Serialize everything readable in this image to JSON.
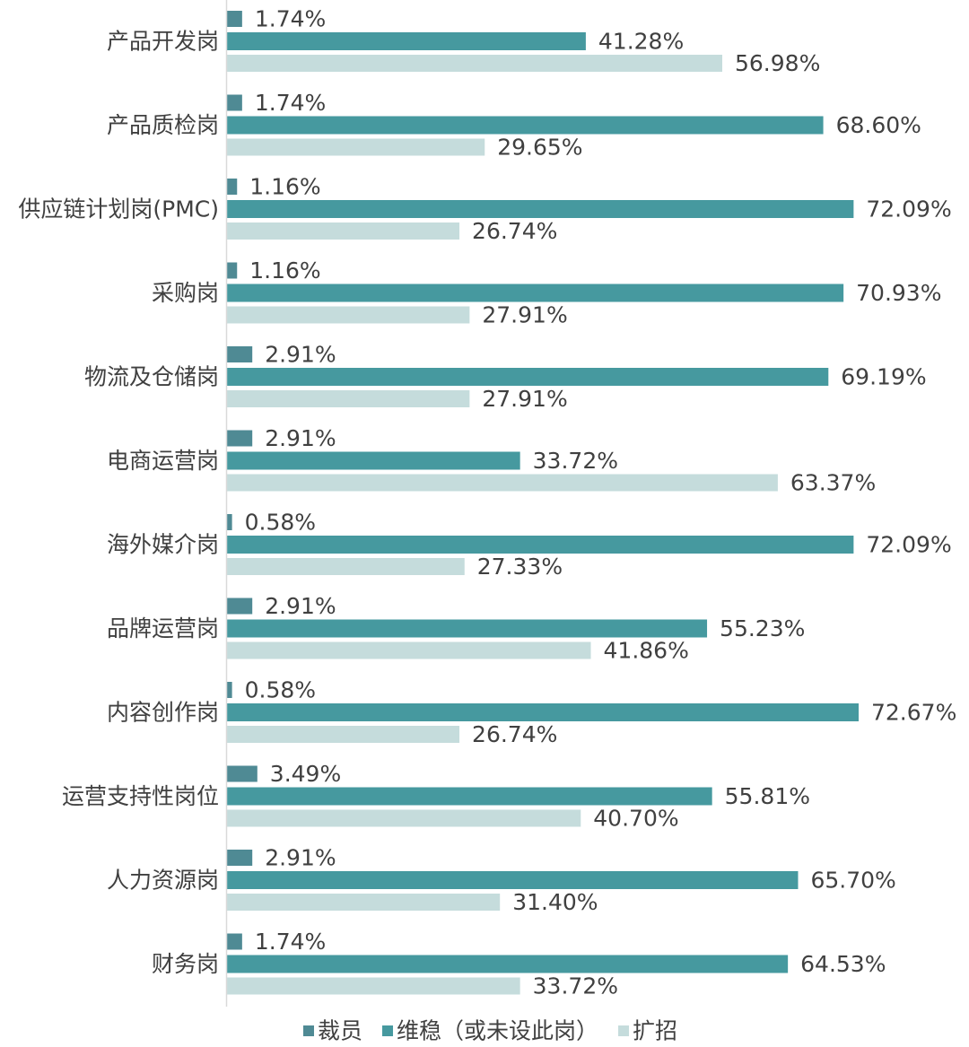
{
  "chart_data": {
    "type": "bar",
    "orientation": "horizontal",
    "categories": [
      "产品开发岗",
      "产品质检岗",
      "供应链计划岗(PMC)",
      "采购岗",
      "物流及仓储岗",
      "电商运营岗",
      "海外媒介岗",
      "品牌运营岗",
      "内容创作岗",
      "运营支持性岗位",
      "人力资源岗",
      "财务岗"
    ],
    "series": [
      {
        "name": "裁员",
        "color": "#4f8a94",
        "values": [
          1.74,
          1.74,
          1.16,
          1.16,
          2.91,
          2.91,
          0.58,
          2.91,
          0.58,
          3.49,
          2.91,
          1.74
        ],
        "labels": [
          "1.74%",
          "1.74%",
          "1.16%",
          "1.16%",
          "2.91%",
          "2.91%",
          "0.58%",
          "2.91%",
          "0.58%",
          "3.49%",
          "2.91%",
          "1.74%"
        ]
      },
      {
        "name": "维稳（或未设此岗）",
        "color": "#46999f",
        "values": [
          41.28,
          68.6,
          72.09,
          70.93,
          69.19,
          33.72,
          72.09,
          55.23,
          72.67,
          55.81,
          65.7,
          64.53
        ],
        "labels": [
          "41.28%",
          "68.60%",
          "72.09%",
          "70.93%",
          "69.19%",
          "33.72%",
          "72.09%",
          "55.23%",
          "72.67%",
          "55.81%",
          "65.70%",
          "64.53%"
        ]
      },
      {
        "name": "扩招",
        "color": "#c5dcdc",
        "values": [
          56.98,
          29.65,
          26.74,
          27.91,
          27.91,
          63.37,
          27.33,
          41.86,
          26.74,
          40.7,
          31.4,
          33.72
        ],
        "labels": [
          "56.98%",
          "29.65%",
          "26.74%",
          "27.91%",
          "27.91%",
          "63.37%",
          "27.33%",
          "41.86%",
          "26.74%",
          "40.70%",
          "31.40%",
          "33.72%"
        ]
      }
    ],
    "unit": "%",
    "xlim": [
      0,
      72.67
    ],
    "legend_position": "bottom",
    "grid": false,
    "title": "",
    "xlabel": "",
    "ylabel": ""
  }
}
